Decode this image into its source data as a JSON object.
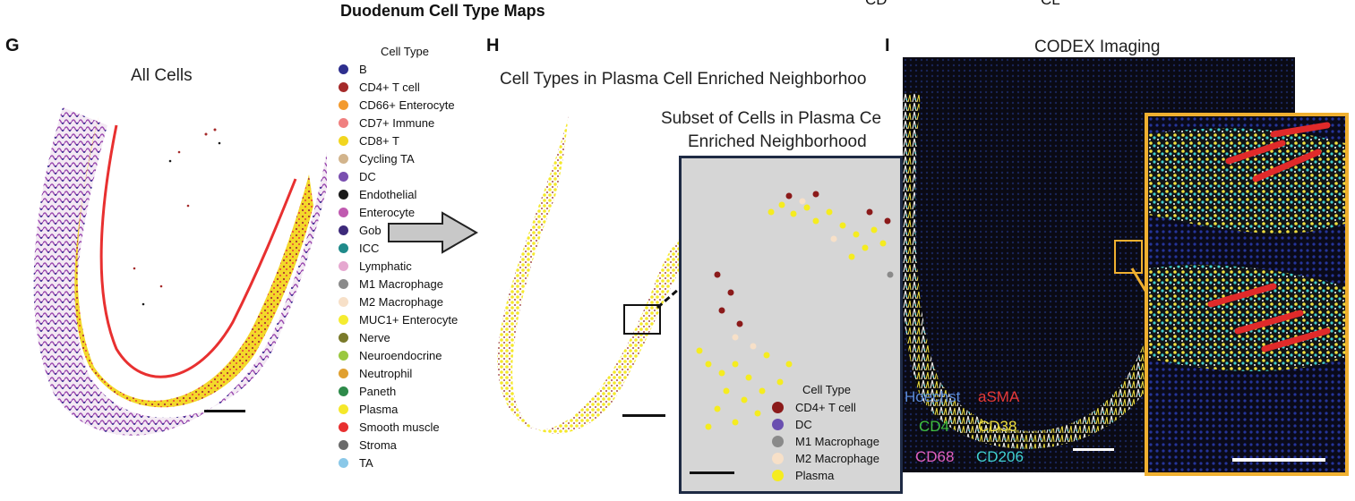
{
  "figure_title": "Duodenum Cell Type Maps",
  "top_cut_labels": [
    "CD",
    "CL"
  ],
  "panel_g": {
    "letter": "G",
    "title": "All Cells"
  },
  "legend": {
    "title": "Cell Type",
    "items": [
      {
        "label": "B",
        "color": "#2e2f8e"
      },
      {
        "label": "CD4+ T cell",
        "color": "#a52a2a"
      },
      {
        "label": "CD66+ Enterocyte",
        "color": "#f39a2e"
      },
      {
        "label": "CD7+ Immune",
        "color": "#f08080"
      },
      {
        "label": "CD8+ T",
        "color": "#f2d61f"
      },
      {
        "label": "Cycling TA",
        "color": "#d2b48c"
      },
      {
        "label": "DC",
        "color": "#7a4fb0"
      },
      {
        "label": "Endothelial",
        "color": "#1a1a1a"
      },
      {
        "label": "Enterocyte",
        "color": "#c05ab0"
      },
      {
        "label": "Gob",
        "color": "#3d2a7a"
      },
      {
        "label": "ICC",
        "color": "#1f8a8a"
      },
      {
        "label": "Lymphatic",
        "color": "#e6a8d0"
      },
      {
        "label": "M1 Macrophage",
        "color": "#8a8a8a"
      },
      {
        "label": "M2 Macrophage",
        "color": "#f7e0c8"
      },
      {
        "label": "MUC1+ Enterocyte",
        "color": "#f5ec30"
      },
      {
        "label": "Nerve",
        "color": "#7a7a2a"
      },
      {
        "label": "Neuroendocrine",
        "color": "#9ac840"
      },
      {
        "label": "Neutrophil",
        "color": "#e0a030"
      },
      {
        "label": "Paneth",
        "color": "#2e8a4a"
      },
      {
        "label": "Plasma",
        "color": "#f5e82a"
      },
      {
        "label": "Smooth muscle",
        "color": "#e83030"
      },
      {
        "label": "Stroma",
        "color": "#6a6a6a"
      },
      {
        "label": "TA",
        "color": "#8ac8e8"
      }
    ]
  },
  "panel_h": {
    "letter": "H",
    "title": "Cell Types in Plasma Cell Enriched Neighborhoo",
    "inset_title_line1": "Subset of Cells in Plasma Ce",
    "inset_title_line2": "Enriched Neighborhood",
    "inset_legend": {
      "title": "Cell Type",
      "items": [
        {
          "label": "CD4+ T cell",
          "color": "#8b1a1a"
        },
        {
          "label": "DC",
          "color": "#6a4fb0"
        },
        {
          "label": "M1 Macrophage",
          "color": "#8a8a8a"
        },
        {
          "label": "M2 Macrophage",
          "color": "#f7e0c8"
        },
        {
          "label": "Plasma",
          "color": "#f5ec20"
        }
      ]
    }
  },
  "panel_i": {
    "letter": "I",
    "title": "CODEX Imaging",
    "channels": [
      {
        "label": "Hoechst",
        "color": "#5a8ad8"
      },
      {
        "label": "aSMA",
        "color": "#e83a3a"
      },
      {
        "label": "CD4",
        "color": "#40c040"
      },
      {
        "label": "CD38",
        "color": "#f0e040"
      },
      {
        "label": "CD68",
        "color": "#e060c0"
      },
      {
        "label": "CD206",
        "color": "#40d0d0"
      }
    ]
  }
}
